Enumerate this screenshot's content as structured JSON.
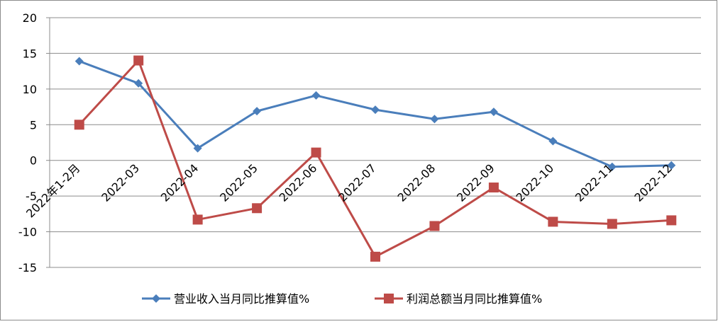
{
  "chart_data": {
    "type": "line",
    "title": "",
    "xlabel": "",
    "ylabel": "",
    "categories": [
      "2022年1-2月",
      "2022-03",
      "2022-04",
      "2022-05",
      "2022-06",
      "2022-07",
      "2022-08",
      "2022-09",
      "2022-10",
      "2022-11",
      "2022-12"
    ],
    "ylim": [
      -15,
      20
    ],
    "yticks": [
      "20",
      "15",
      "10",
      "5",
      "0",
      "-5",
      "-10",
      "-15"
    ],
    "grid": true,
    "legend_position": "bottom",
    "series": [
      {
        "name": "营业收入当月同比推算值%",
        "color": "#4a7ebb",
        "marker": "diamond",
        "values": [
          13.9,
          10.8,
          1.7,
          6.9,
          9.1,
          7.1,
          5.8,
          6.8,
          2.7,
          -0.9,
          -0.7
        ]
      },
      {
        "name": "利润总额当月同比推算值%",
        "color": "#be4b48",
        "marker": "square",
        "values": [
          5.0,
          14.0,
          -8.3,
          -6.7,
          1.1,
          -13.5,
          -9.2,
          -3.8,
          -8.6,
          -8.9,
          -8.4
        ]
      }
    ]
  }
}
